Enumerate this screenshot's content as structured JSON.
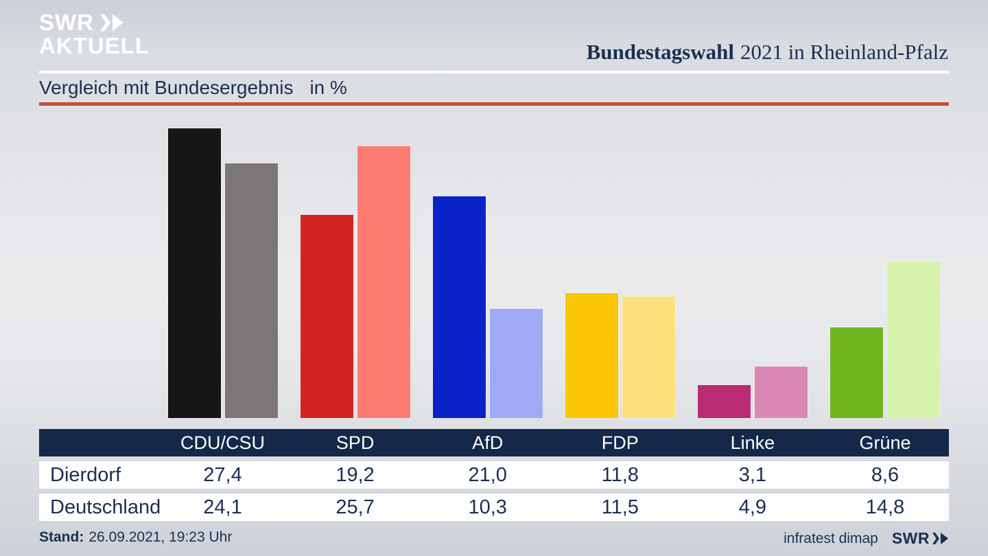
{
  "header": {
    "logo_line1": "SWR",
    "logo_line2": "AKTUELL",
    "title_bold": "Bundestagswahl",
    "title_regular": "2021 in Rheinland-Pfalz"
  },
  "subtitle": {
    "text": "Vergleich mit Bundesergebnis",
    "unit": "in %"
  },
  "colors": {
    "navy_text": "#1b2f52",
    "table_header_bg": "#15284a",
    "rule_red": "#c44e35",
    "rule_white": "#fdfdfd",
    "logo_white": "#ffffff"
  },
  "chart_data": {
    "type": "bar",
    "title": "Vergleich mit Bundesergebnis",
    "unit": "in %",
    "categories": [
      "CDU/CSU",
      "SPD",
      "AfD",
      "FDP",
      "Linke",
      "Grüne"
    ],
    "series": [
      {
        "name": "Dierdorf",
        "values": [
          27.4,
          19.2,
          21.0,
          11.8,
          3.1,
          8.6
        ],
        "labels": [
          "27,4",
          "19,2",
          "21,0",
          "11,8",
          "3,1",
          "8,6"
        ],
        "colors": [
          "#161616",
          "#d32422",
          "#0a23c8",
          "#fcc608",
          "#b92b72",
          "#6fb51d"
        ]
      },
      {
        "name": "Deutschland",
        "values": [
          24.1,
          25.7,
          10.3,
          11.5,
          4.9,
          14.8
        ],
        "labels": [
          "24,1",
          "25,7",
          "10,3",
          "11,5",
          "4,9",
          "14,8"
        ],
        "colors": [
          "#7b7776",
          "#fd7b71",
          "#9fa9f4",
          "#fbe07d",
          "#db87b4",
          "#d7f2ab"
        ]
      }
    ],
    "ylim": [
      0,
      28
    ],
    "grid": false,
    "axis_labels_shown": false,
    "legend_position": "table-below"
  },
  "footer": {
    "stand_label": "Stand:",
    "stand_value": "26.09.2021, 19:23 Uhr",
    "source": "infratest dimap",
    "brand": "SWR"
  }
}
